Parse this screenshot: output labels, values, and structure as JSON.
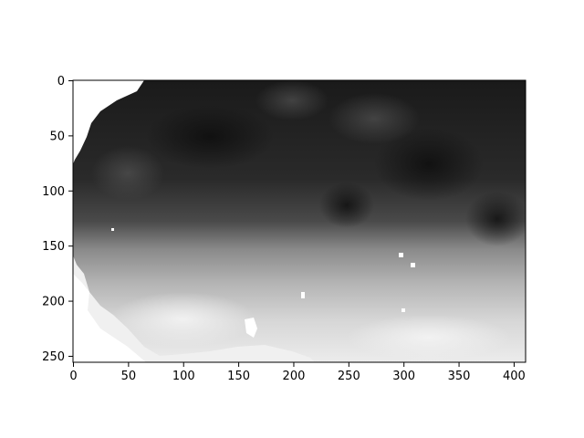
{
  "chart_data": {
    "type": "heatmap",
    "colormap": "gray",
    "title": "",
    "xlabel": "",
    "ylabel": "",
    "grid": false,
    "xlim": [
      0,
      410
    ],
    "ylim": [
      255,
      0
    ],
    "x_ticks": [
      0,
      50,
      100,
      150,
      200,
      250,
      300,
      350,
      400
    ],
    "y_ticks": [
      0,
      50,
      100,
      150,
      200,
      250
    ],
    "description_values": "grayscale intensity field; dark upper region, bright lower region"
  }
}
